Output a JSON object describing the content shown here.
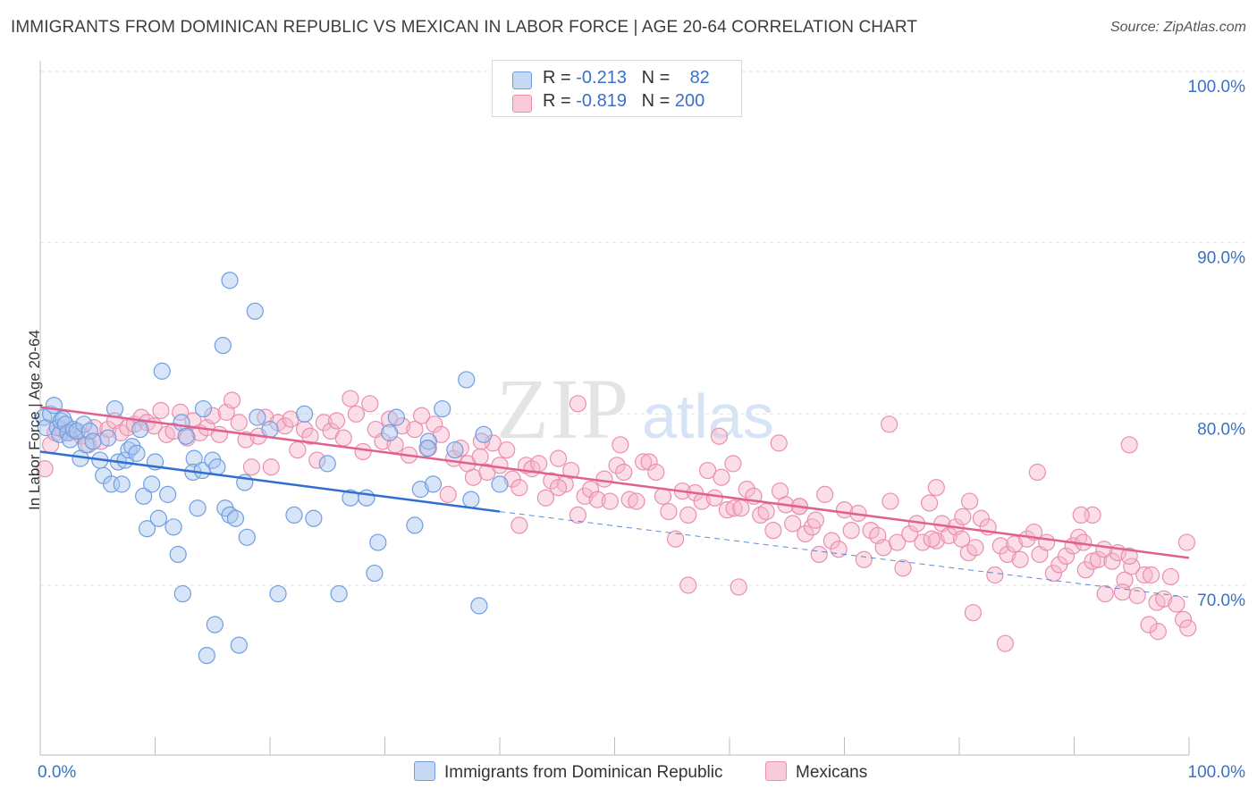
{
  "title": "IMMIGRANTS FROM DOMINICAN REPUBLIC VS MEXICAN IN LABOR FORCE | AGE 20-64 CORRELATION CHART",
  "source": "Source: ZipAtlas.com",
  "watermark": {
    "zip": "ZIP",
    "atlas": "atlas"
  },
  "legend": {
    "r_label": "R =",
    "n_label": "N =",
    "blue": {
      "r": "-0.213",
      "n": "82"
    },
    "pink": {
      "r": "-0.819",
      "n": "200"
    }
  },
  "colors": {
    "blue_fill": "#a8c6f0",
    "blue_stroke": "#6f9ee0",
    "blue_line": "#2f6fd0",
    "pink_fill": "#f6b6cb",
    "pink_stroke": "#ea8fae",
    "pink_line": "#e0608e",
    "axis_text": "#3a70c8"
  },
  "chart_data": {
    "type": "scatter",
    "title": "IMMIGRANTS FROM DOMINICAN REPUBLIC VS MEXICAN IN LABOR FORCE | AGE 20-64 CORRELATION CHART",
    "xlabel": "",
    "ylabel": "In Labor Force | Age 20-64",
    "xlim": [
      0,
      100
    ],
    "ylim": [
      60.5,
      102
    ],
    "x_tick_labels": [
      "0.0%",
      "100.0%"
    ],
    "y_ticks": [
      70,
      80,
      90,
      100
    ],
    "y_tick_labels": [
      "70.0%",
      "80.0%",
      "90.0%",
      "100.0%"
    ],
    "grid": true,
    "legend_position": "top-center",
    "series": [
      {
        "name": "Immigrants from Dominican Republic",
        "color": "#a8c6f0",
        "trend": {
          "x": [
            0,
            40
          ],
          "y": [
            77.8,
            74.3
          ],
          "extended_to": [
            100,
            69.3
          ]
        },
        "points": [
          [
            0.3,
            79.8
          ],
          [
            0.5,
            79.2
          ],
          [
            0.9,
            80.0
          ],
          [
            1.2,
            80.5
          ],
          [
            1.5,
            79.2
          ],
          [
            1.7,
            78.8
          ],
          [
            1.8,
            79.6
          ],
          [
            2.0,
            79.7
          ],
          [
            2.2,
            79.4
          ],
          [
            2.4,
            78.9
          ],
          [
            2.6,
            78.5
          ],
          [
            2.9,
            79.1
          ],
          [
            3.2,
            79.0
          ],
          [
            3.5,
            77.4
          ],
          [
            3.8,
            79.4
          ],
          [
            4.0,
            78.2
          ],
          [
            4.3,
            79.0
          ],
          [
            4.6,
            78.4
          ],
          [
            5.2,
            77.3
          ],
          [
            5.5,
            76.4
          ],
          [
            5.9,
            78.6
          ],
          [
            6.2,
            75.9
          ],
          [
            6.5,
            80.3
          ],
          [
            6.8,
            77.2
          ],
          [
            7.1,
            75.9
          ],
          [
            7.4,
            77.3
          ],
          [
            7.7,
            77.9
          ],
          [
            8.0,
            78.1
          ],
          [
            8.4,
            77.7
          ],
          [
            8.7,
            79.1
          ],
          [
            9.0,
            75.2
          ],
          [
            9.3,
            73.3
          ],
          [
            9.7,
            75.9
          ],
          [
            10.0,
            77.2
          ],
          [
            10.3,
            73.9
          ],
          [
            10.6,
            82.5
          ],
          [
            11.1,
            75.3
          ],
          [
            11.6,
            73.4
          ],
          [
            12.0,
            71.8
          ],
          [
            12.3,
            79.5
          ],
          [
            12.7,
            78.7
          ],
          [
            12.4,
            69.5
          ],
          [
            13.4,
            77.4
          ],
          [
            13.3,
            76.6
          ],
          [
            13.7,
            74.5
          ],
          [
            14.1,
            76.7
          ],
          [
            14.2,
            80.3
          ],
          [
            14.5,
            65.9
          ],
          [
            15.0,
            77.3
          ],
          [
            15.2,
            67.7
          ],
          [
            15.4,
            76.9
          ],
          [
            15.9,
            84.0
          ],
          [
            16.1,
            74.5
          ],
          [
            16.5,
            74.1
          ],
          [
            17.0,
            73.9
          ],
          [
            17.3,
            66.5
          ],
          [
            17.8,
            76.0
          ],
          [
            18.0,
            72.8
          ],
          [
            18.9,
            79.8
          ],
          [
            20.0,
            79.1
          ],
          [
            16.5,
            87.8
          ],
          [
            18.7,
            86.0
          ],
          [
            20.7,
            69.5
          ],
          [
            22.1,
            74.1
          ],
          [
            23.0,
            80.0
          ],
          [
            23.8,
            73.9
          ],
          [
            25.0,
            77.1
          ],
          [
            26.0,
            69.5
          ],
          [
            27.0,
            75.1
          ],
          [
            28.4,
            75.1
          ],
          [
            29.1,
            70.7
          ],
          [
            29.4,
            72.5
          ],
          [
            31.0,
            79.8
          ],
          [
            30.4,
            78.9
          ],
          [
            32.6,
            73.5
          ],
          [
            33.1,
            75.6
          ],
          [
            34.2,
            75.9
          ],
          [
            36.1,
            77.9
          ],
          [
            33.8,
            78.4
          ],
          [
            37.5,
            75.0
          ],
          [
            33.7,
            78.0
          ],
          [
            35.0,
            80.3
          ]
        ],
        "points_extra": [
          [
            37.1,
            82.0
          ],
          [
            38.6,
            78.8
          ],
          [
            40.0,
            75.9
          ],
          [
            38.2,
            68.8
          ]
        ]
      },
      {
        "name": "Mexicans",
        "color": "#f6b6cb",
        "trend": {
          "x": [
            0,
            100
          ],
          "y": [
            80.4,
            71.6
          ]
        },
        "points": [
          [
            0.4,
            76.8
          ],
          [
            0.9,
            78.2
          ],
          [
            1.3,
            78.9
          ],
          [
            1.9,
            79.1
          ],
          [
            2.5,
            78.9
          ],
          [
            3.0,
            79.0
          ],
          [
            3.6,
            78.7
          ],
          [
            4.2,
            78.2
          ],
          [
            4.7,
            79.2
          ],
          [
            5.3,
            78.4
          ],
          [
            5.9,
            79.1
          ],
          [
            6.5,
            79.6
          ],
          [
            7.0,
            78.9
          ],
          [
            7.6,
            79.2
          ],
          [
            8.2,
            79.4
          ],
          [
            8.8,
            79.8
          ],
          [
            9.3,
            79.5
          ],
          [
            9.9,
            79.3
          ],
          [
            10.5,
            80.2
          ],
          [
            11.0,
            78.8
          ],
          [
            11.6,
            79.0
          ],
          [
            12.2,
            80.1
          ],
          [
            12.8,
            78.6
          ],
          [
            13.3,
            79.6
          ],
          [
            13.9,
            78.9
          ],
          [
            14.5,
            79.2
          ],
          [
            15.0,
            79.9
          ],
          [
            15.6,
            78.8
          ],
          [
            16.2,
            80.1
          ],
          [
            16.7,
            80.8
          ],
          [
            17.3,
            79.5
          ],
          [
            17.9,
            78.5
          ],
          [
            18.4,
            76.9
          ],
          [
            19.0,
            78.7
          ],
          [
            19.6,
            79.8
          ],
          [
            20.1,
            76.9
          ],
          [
            20.7,
            79.5
          ],
          [
            21.3,
            79.3
          ],
          [
            21.8,
            79.7
          ],
          [
            22.4,
            77.9
          ],
          [
            23.0,
            79.1
          ],
          [
            23.5,
            78.7
          ],
          [
            24.1,
            77.3
          ],
          [
            24.7,
            79.5
          ],
          [
            25.3,
            79.0
          ],
          [
            25.8,
            79.6
          ],
          [
            26.4,
            78.6
          ],
          [
            27.0,
            80.9
          ],
          [
            27.5,
            80.0
          ],
          [
            28.1,
            77.8
          ],
          [
            28.7,
            80.6
          ],
          [
            29.2,
            79.1
          ],
          [
            29.8,
            78.4
          ],
          [
            30.4,
            79.7
          ],
          [
            30.9,
            78.2
          ],
          [
            31.5,
            79.3
          ],
          [
            32.1,
            77.6
          ],
          [
            32.6,
            79.1
          ],
          [
            33.2,
            79.9
          ],
          [
            33.8,
            78.0
          ],
          [
            34.3,
            79.4
          ],
          [
            34.9,
            78.8
          ],
          [
            35.5,
            75.3
          ],
          [
            36.0,
            77.4
          ],
          [
            36.6,
            78.0
          ],
          [
            37.2,
            77.1
          ],
          [
            37.7,
            76.3
          ],
          [
            38.3,
            77.5
          ],
          [
            38.9,
            76.6
          ],
          [
            39.4,
            78.3
          ],
          [
            40.0,
            77.0
          ],
          [
            40.6,
            77.9
          ],
          [
            41.1,
            76.2
          ],
          [
            41.7,
            75.7
          ],
          [
            42.3,
            77.0
          ],
          [
            42.8,
            76.8
          ],
          [
            43.4,
            77.1
          ],
          [
            44.0,
            75.1
          ],
          [
            44.5,
            76.1
          ],
          [
            45.1,
            77.4
          ],
          [
            45.7,
            75.9
          ],
          [
            46.2,
            76.7
          ],
          [
            46.8,
            74.1
          ],
          [
            47.4,
            75.2
          ],
          [
            47.9,
            75.6
          ],
          [
            48.5,
            75.0
          ],
          [
            49.1,
            76.2
          ],
          [
            49.6,
            74.9
          ],
          [
            50.2,
            77.0
          ],
          [
            50.8,
            76.6
          ],
          [
            51.3,
            75.0
          ],
          [
            51.9,
            74.9
          ],
          [
            52.5,
            77.2
          ],
          [
            53.0,
            77.2
          ],
          [
            53.6,
            76.6
          ],
          [
            54.2,
            75.2
          ],
          [
            54.7,
            74.3
          ],
          [
            55.3,
            72.7
          ],
          [
            55.9,
            75.5
          ],
          [
            56.4,
            74.1
          ],
          [
            57.0,
            75.4
          ],
          [
            57.6,
            74.9
          ],
          [
            58.1,
            76.7
          ],
          [
            58.7,
            75.1
          ],
          [
            59.3,
            76.3
          ],
          [
            59.8,
            74.4
          ],
          [
            60.4,
            74.5
          ],
          [
            61.0,
            74.5
          ],
          [
            61.5,
            75.6
          ],
          [
            62.1,
            75.2
          ],
          [
            62.7,
            74.1
          ],
          [
            63.2,
            74.3
          ],
          [
            63.8,
            73.2
          ],
          [
            64.4,
            75.5
          ],
          [
            64.9,
            74.7
          ],
          [
            65.5,
            73.6
          ],
          [
            66.1,
            74.6
          ],
          [
            66.6,
            73.0
          ],
          [
            67.2,
            73.4
          ],
          [
            67.8,
            71.8
          ],
          [
            68.3,
            75.3
          ],
          [
            68.9,
            72.6
          ],
          [
            69.5,
            72.1
          ],
          [
            70.0,
            74.4
          ],
          [
            70.6,
            73.2
          ],
          [
            71.2,
            74.2
          ],
          [
            71.7,
            71.5
          ],
          [
            72.3,
            73.2
          ],
          [
            72.9,
            72.9
          ],
          [
            73.4,
            72.2
          ],
          [
            74.0,
            74.9
          ],
          [
            74.6,
            72.5
          ],
          [
            75.1,
            71.0
          ],
          [
            75.7,
            73.0
          ],
          [
            76.3,
            73.6
          ],
          [
            76.8,
            72.5
          ],
          [
            77.4,
            74.8
          ],
          [
            78.0,
            72.6
          ],
          [
            78.5,
            73.6
          ],
          [
            79.1,
            72.9
          ],
          [
            79.7,
            73.4
          ],
          [
            80.2,
            72.7
          ],
          [
            80.8,
            71.9
          ],
          [
            81.4,
            72.2
          ],
          [
            81.9,
            73.9
          ],
          [
            82.5,
            73.4
          ],
          [
            83.1,
            70.6
          ],
          [
            83.6,
            72.3
          ],
          [
            84.2,
            71.8
          ],
          [
            84.8,
            72.4
          ],
          [
            85.3,
            71.5
          ],
          [
            85.9,
            72.7
          ],
          [
            86.5,
            73.1
          ],
          [
            87.0,
            71.8
          ],
          [
            87.6,
            72.5
          ],
          [
            88.2,
            70.7
          ],
          [
            88.7,
            71.2
          ],
          [
            89.3,
            71.7
          ],
          [
            89.9,
            72.3
          ],
          [
            90.4,
            72.8
          ],
          [
            91.0,
            70.9
          ],
          [
            91.6,
            71.4
          ],
          [
            92.1,
            71.5
          ],
          [
            92.7,
            69.5
          ],
          [
            93.3,
            71.4
          ],
          [
            93.8,
            71.9
          ],
          [
            94.4,
            70.3
          ],
          [
            95.0,
            71.1
          ],
          [
            95.5,
            69.4
          ],
          [
            96.1,
            70.6
          ],
          [
            96.7,
            70.6
          ],
          [
            97.2,
            69.0
          ],
          [
            97.8,
            69.2
          ],
          [
            98.4,
            70.5
          ],
          [
            98.9,
            68.9
          ],
          [
            99.5,
            68.0
          ],
          [
            99.9,
            67.5
          ],
          [
            97.3,
            67.3
          ],
          [
            96.5,
            67.7
          ],
          [
            94.2,
            69.6
          ],
          [
            81.2,
            68.4
          ],
          [
            80.3,
            74.0
          ],
          [
            78.0,
            75.7
          ],
          [
            77.6,
            72.7
          ],
          [
            80.9,
            74.9
          ],
          [
            60.8,
            69.9
          ],
          [
            67.5,
            73.8
          ],
          [
            84.0,
            66.6
          ],
          [
            56.4,
            70.0
          ],
          [
            46.8,
            80.6
          ],
          [
            92.6,
            72.1
          ],
          [
            90.8,
            72.5
          ],
          [
            91.6,
            74.1
          ],
          [
            94.8,
            71.7
          ],
          [
            66.1,
            74.6
          ],
          [
            60.3,
            77.1
          ],
          [
            50.5,
            78.2
          ],
          [
            45.1,
            75.7
          ],
          [
            41.7,
            73.5
          ],
          [
            38.4,
            78.4
          ]
        ],
        "points_extra": [
          [
            94.8,
            78.2
          ],
          [
            90.6,
            74.1
          ],
          [
            99.8,
            72.5
          ],
          [
            73.9,
            79.4
          ],
          [
            64.3,
            78.3
          ],
          [
            59.1,
            78.7
          ],
          [
            86.8,
            76.6
          ]
        ]
      }
    ]
  },
  "x_axis": {
    "left_label": "0.0%",
    "right_label": "100.0%"
  },
  "bottom_legend": {
    "blue_label": "Immigrants from Dominican Republic",
    "pink_label": "Mexicans"
  }
}
